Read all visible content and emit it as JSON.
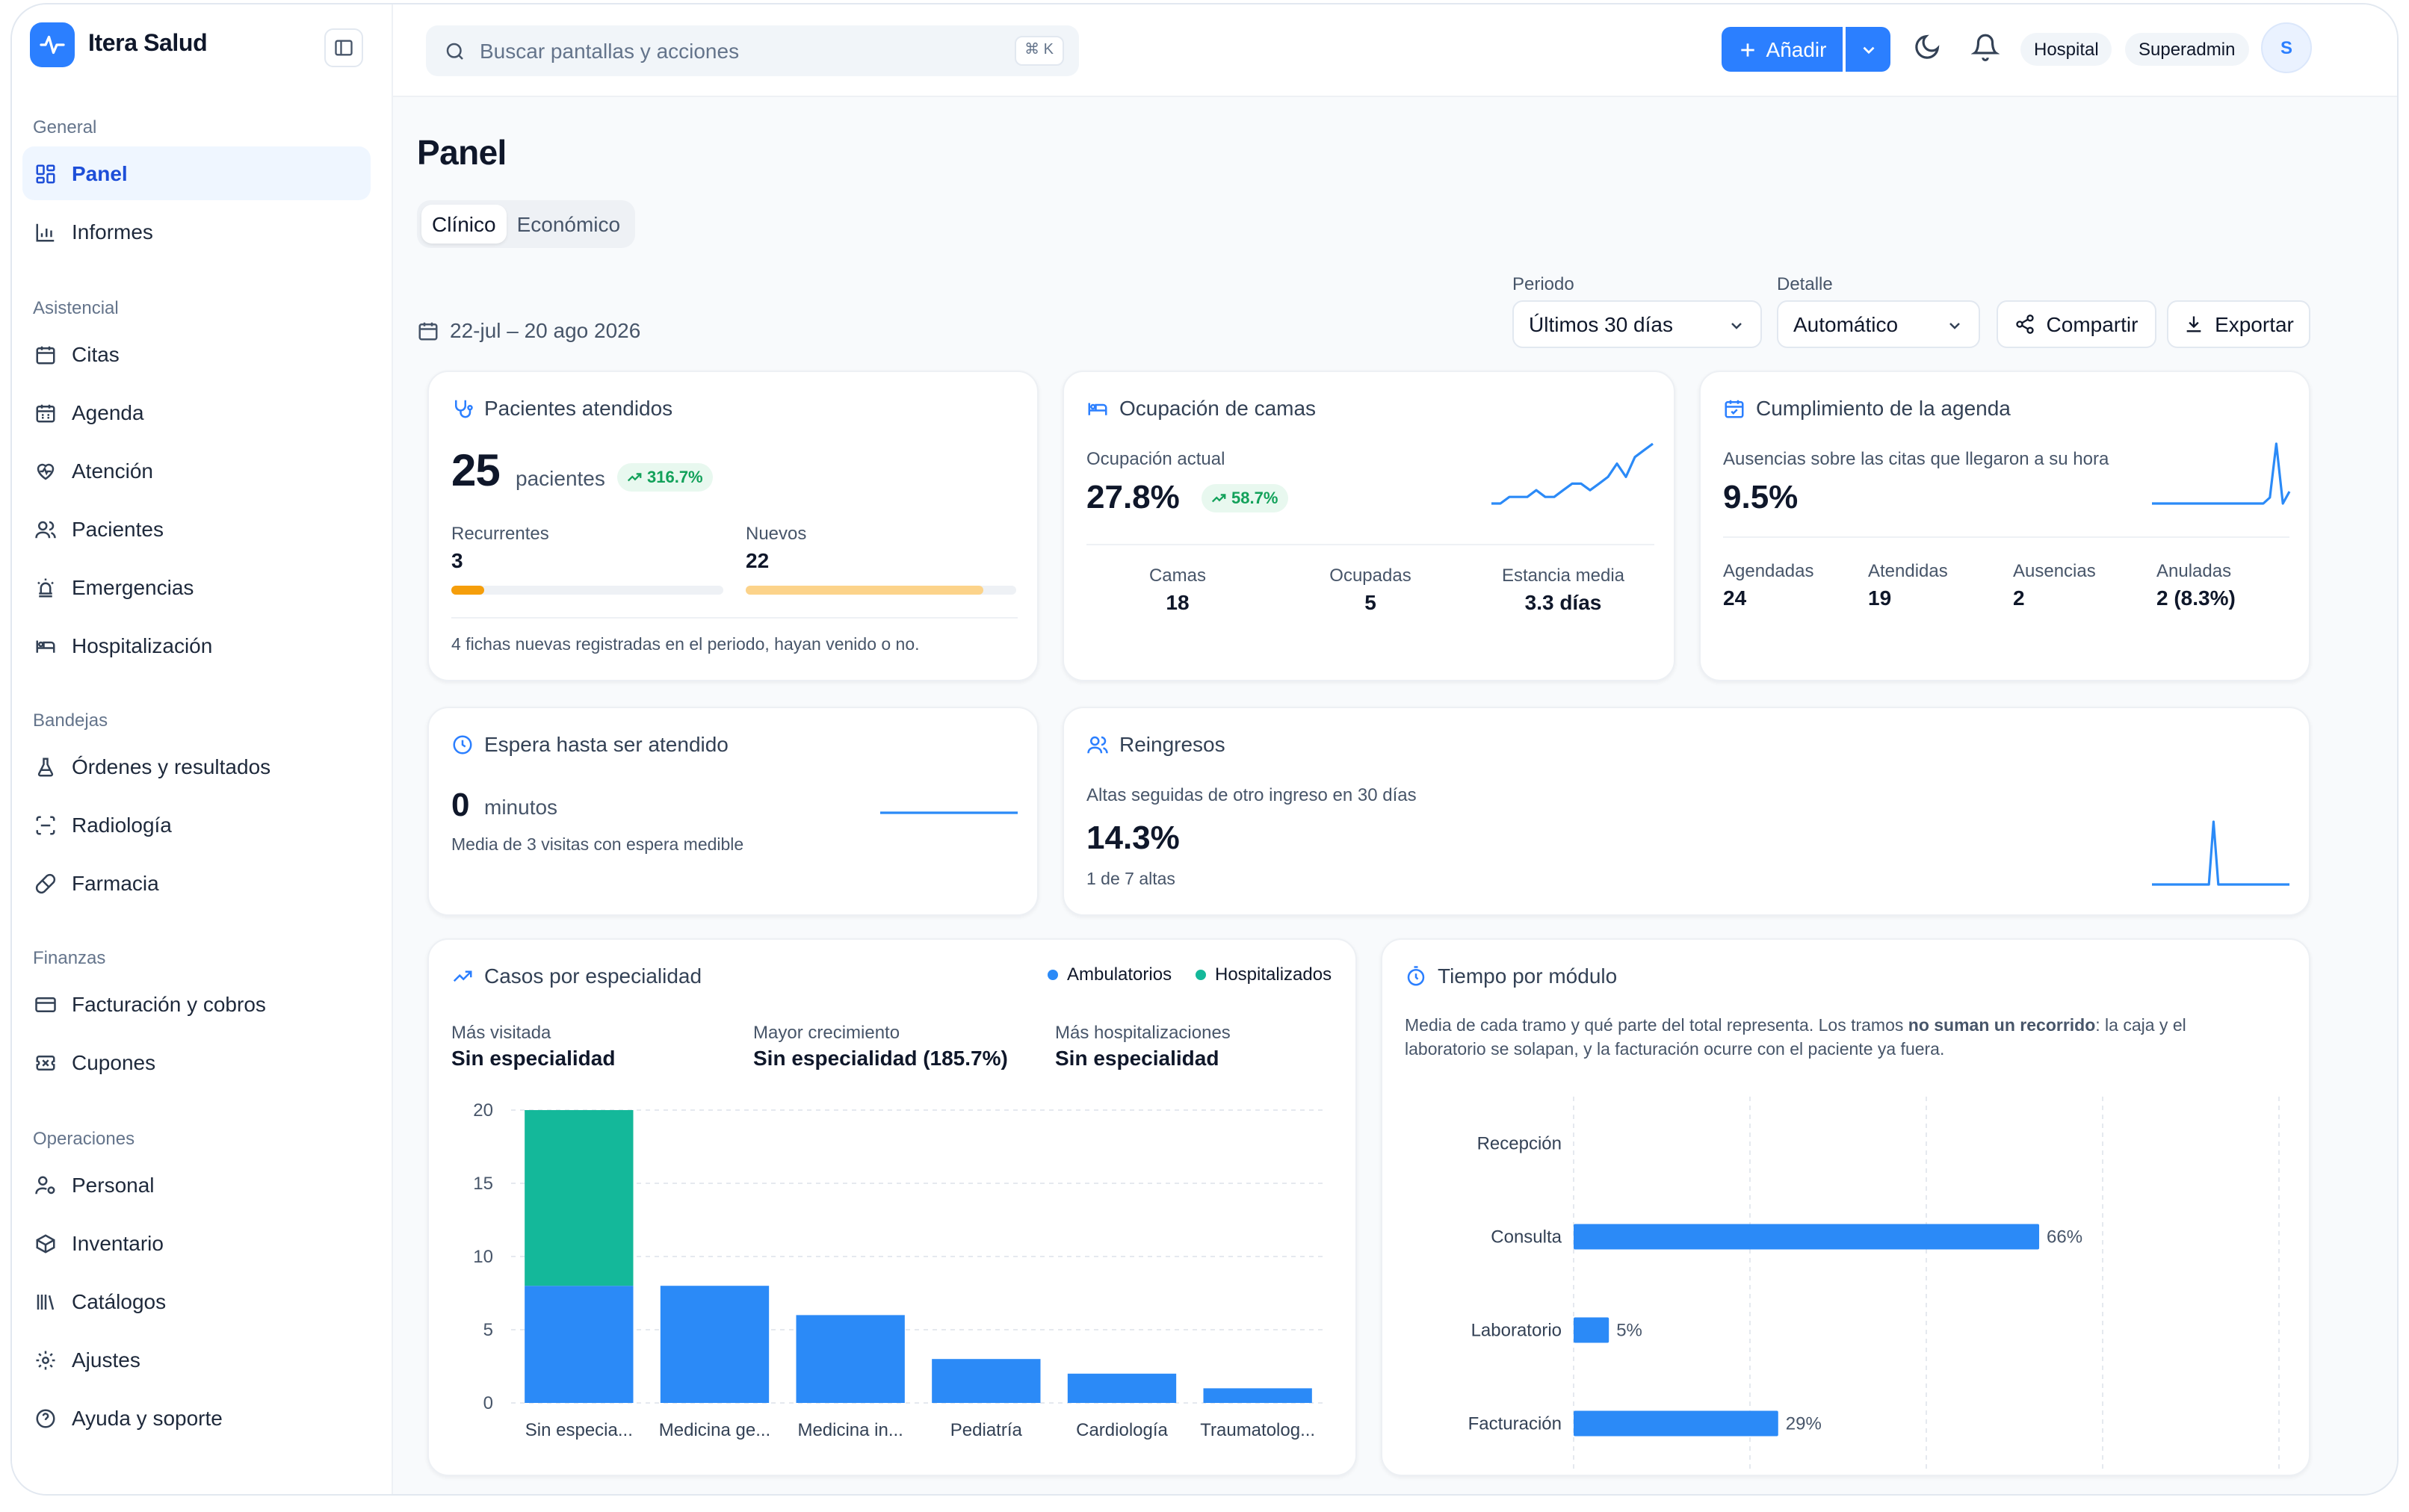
{
  "app": {
    "name": "Itera Salud"
  },
  "sidebar": {
    "sections": {
      "general": "General",
      "asistencial": "Asistencial",
      "bandejas": "Bandejas",
      "finanzas": "Finanzas",
      "operaciones": "Operaciones"
    },
    "items": {
      "panel": "Panel",
      "informes": "Informes",
      "citas": "Citas",
      "agenda": "Agenda",
      "atencion": "Atención",
      "pacientes": "Pacientes",
      "emergencias": "Emergencias",
      "hospitalizacion": "Hospitalización",
      "ordenes": "Órdenes y resultados",
      "radiologia": "Radiología",
      "farmacia": "Farmacia",
      "facturacion": "Facturación y cobros",
      "cupones": "Cupones",
      "personal": "Personal",
      "inventario": "Inventario",
      "catalogos": "Catálogos",
      "ajustes": "Ajustes",
      "ayuda": "Ayuda y soporte"
    },
    "active": "panel"
  },
  "topbar": {
    "search_placeholder": "Buscar pantallas y acciones",
    "shortcut": "⌘ K",
    "add_label": "Añadir",
    "context_pill": "Hospital",
    "role_pill": "Superadmin",
    "avatar_initial": "S"
  },
  "page": {
    "title": "Panel",
    "tabs": [
      "Clínico",
      "Económico"
    ],
    "active_tab": "Clínico",
    "date_range": "22-jul – 20 ago 2026",
    "filters": {
      "period_label": "Periodo",
      "period_value": "Últimos 30 días",
      "detail_label": "Detalle",
      "detail_value": "Automático"
    },
    "share_label": "Compartir",
    "export_label": "Exportar"
  },
  "cards": {
    "patients": {
      "title": "Pacientes atendidos",
      "value": "25",
      "unit": "pacientes",
      "trend": "316.7%",
      "returning_label": "Recurrentes",
      "returning_value": "3",
      "returning_fraction": 0.12,
      "new_label": "Nuevos",
      "new_value": "22",
      "new_fraction": 0.88,
      "note": "4 fichas nuevas registradas en el periodo, hayan venido o no.",
      "colors": {
        "returning": "#f59e0b",
        "new": "#fcd38a"
      }
    },
    "beds": {
      "title": "Ocupación de camas",
      "subtitle": "Ocupación actual",
      "value": "27.8%",
      "trend": "58.7%",
      "stats": [
        {
          "label": "Camas",
          "value": "18"
        },
        {
          "label": "Ocupadas",
          "value": "5"
        },
        {
          "label": "Estancia media",
          "value": "3.3 días"
        }
      ]
    },
    "agenda": {
      "title": "Cumplimiento de la agenda",
      "subtitle": "Ausencias sobre las citas que llegaron a su hora",
      "value": "9.5%",
      "stats": [
        {
          "label": "Agendadas",
          "value": "24"
        },
        {
          "label": "Atendidas",
          "value": "19"
        },
        {
          "label": "Ausencias",
          "value": "2"
        },
        {
          "label": "Anuladas",
          "value": "2 (8.3%)"
        }
      ]
    },
    "wait": {
      "title": "Espera hasta ser atendido",
      "value": "0",
      "unit": "minutos",
      "note": "Media de 3 visitas con espera medible"
    },
    "readmissions": {
      "title": "Reingresos",
      "subtitle": "Altas seguidas de otro ingreso en 30 días",
      "value": "14.3%",
      "note": "1 de 7 altas"
    },
    "specialty": {
      "title": "Casos por especialidad",
      "stats": [
        {
          "label": "Más visitada",
          "value": "Sin especialidad"
        },
        {
          "label": "Mayor crecimiento",
          "value": "Sin especialidad (185.7%)"
        },
        {
          "label": "Más hospitalizaciones",
          "value": "Sin especialidad"
        }
      ]
    },
    "modules": {
      "title": "Tiempo por módulo",
      "description_start": "Media de cada tramo y qué parte del total representa. Los tramos ",
      "description_bold": "no suman un recorrido",
      "description_end": ": la caja y el laboratorio se solapan, y la facturación ocurre con el paciente ya fuera."
    }
  },
  "colors": {
    "accent": "#2b7fff",
    "teal": "#14b89a",
    "success": "#12a15a"
  },
  "chart_data": [
    {
      "type": "bar",
      "stacked": true,
      "categories": [
        "Sin especia...",
        "Medicina ge...",
        "Medicina in...",
        "Pediatría",
        "Cardiología",
        "Traumatolog..."
      ],
      "series": [
        {
          "name": "Ambulatorios",
          "color": "#2b8af7",
          "values": [
            8,
            8,
            6,
            3,
            2,
            1
          ]
        },
        {
          "name": "Hospitalizados",
          "color": "#14b89a",
          "values": [
            12,
            0,
            0,
            0,
            0,
            0
          ]
        }
      ],
      "ylim": [
        0,
        20
      ],
      "yticks": [
        0,
        5,
        10,
        15,
        20
      ],
      "legend": "top-right",
      "grid": true
    },
    {
      "type": "bar",
      "orientation": "horizontal",
      "categories": [
        "Recepción",
        "Consulta",
        "Laboratorio",
        "Facturación"
      ],
      "values": [
        0,
        66,
        5,
        29
      ],
      "labels": [
        "",
        "66%",
        "5%",
        "29%"
      ],
      "xlim": [
        0,
        100
      ],
      "grid": true,
      "color": "#2b8af7"
    },
    {
      "type": "line",
      "name": "beds-sparkline",
      "values": [
        2,
        2,
        3,
        3,
        3,
        4,
        3,
        3,
        4,
        5,
        5,
        4,
        5,
        6,
        8,
        6,
        9,
        10,
        11
      ]
    },
    {
      "type": "line",
      "name": "agenda-sparkline",
      "values": [
        0,
        0,
        0,
        0,
        0,
        0,
        0,
        0,
        0,
        0,
        0,
        0,
        0,
        0,
        0,
        0,
        0,
        0,
        1,
        10,
        0,
        2
      ]
    },
    {
      "type": "line",
      "name": "wait-sparkline",
      "values": [
        0,
        0,
        0,
        0,
        0,
        0,
        0,
        0,
        0,
        0
      ]
    },
    {
      "type": "line",
      "name": "readmissions-sparkline",
      "values": [
        0,
        0,
        0,
        0,
        0,
        0,
        0,
        0,
        0,
        0,
        0,
        0,
        0,
        1,
        0,
        0,
        0,
        0,
        0,
        0,
        0,
        0,
        0,
        0,
        0,
        0,
        0,
        0,
        0,
        0
      ]
    }
  ]
}
